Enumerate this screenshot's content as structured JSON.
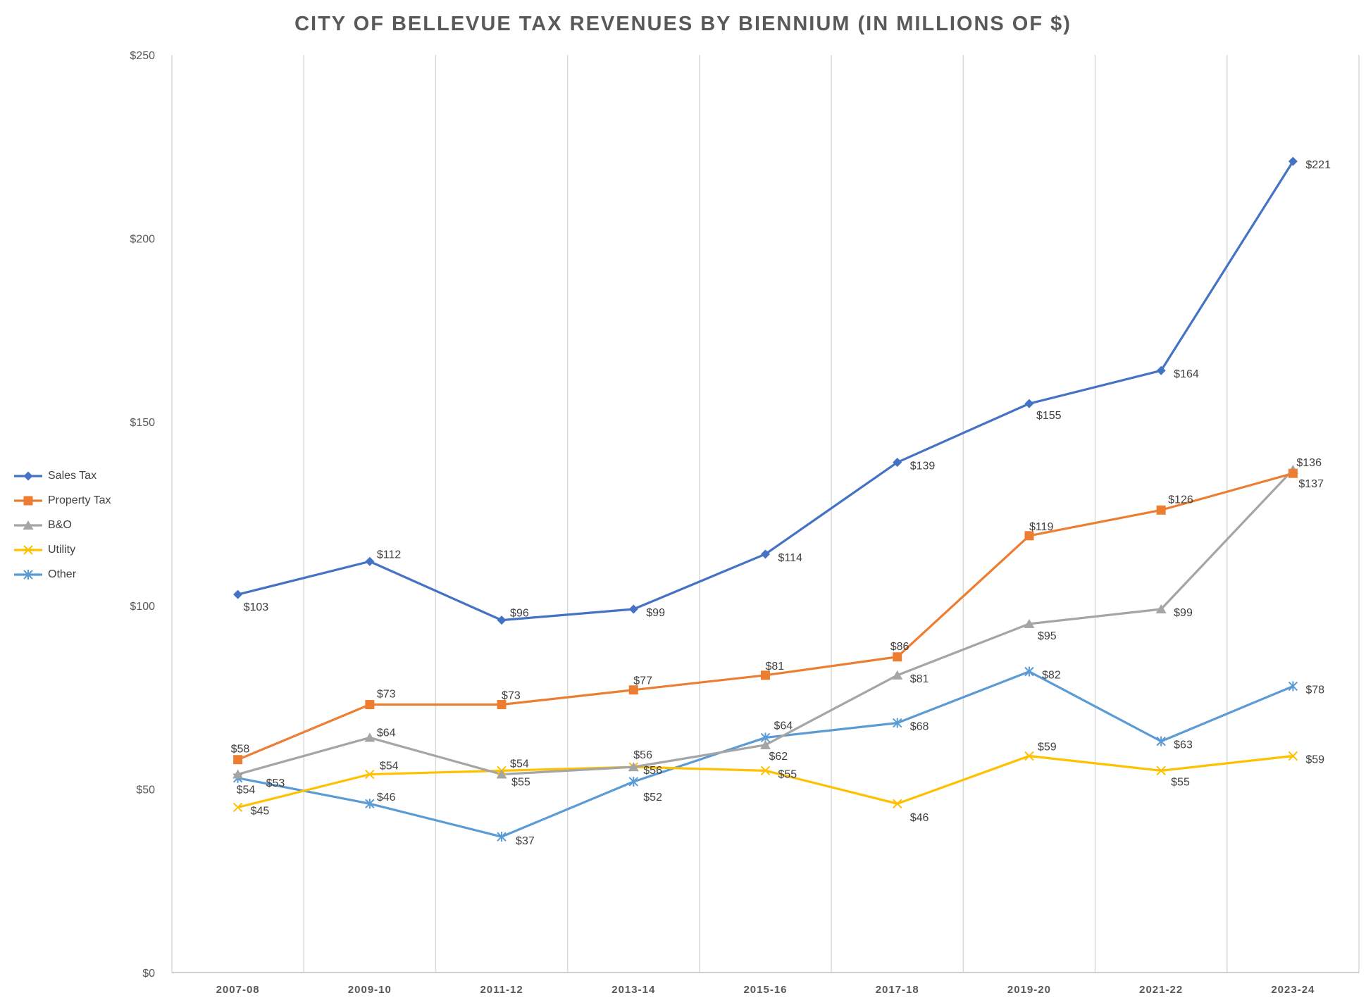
{
  "chart_data": {
    "type": "line",
    "title": "CITY OF BELLEVUE TAX REVENUES BY BIENNIUM (IN MILLIONS OF $)",
    "categories": [
      "2007-08",
      "2009-10",
      "2011-12",
      "2013-14",
      "2015-16",
      "2017-18",
      "2019-20",
      "2021-22",
      "2023-24"
    ],
    "ylim": [
      0,
      250
    ],
    "yticks": [
      0,
      50,
      100,
      150,
      200,
      250
    ],
    "ytick_labels": [
      "$0",
      "$50",
      "$100",
      "$150",
      "$200",
      "$250"
    ],
    "grid": "vertical",
    "legend_position": "left",
    "series": [
      {
        "name": "Sales Tax",
        "color": "#4472c4",
        "marker": "diamond",
        "values": [
          103,
          112,
          96,
          99,
          114,
          139,
          155,
          164,
          221
        ],
        "labels": [
          "$103",
          "$112",
          "$96",
          "$99",
          "$114",
          "$139",
          "$155",
          "$164",
          "$221"
        ]
      },
      {
        "name": "Property Tax",
        "color": "#ed7d31",
        "marker": "square",
        "values": [
          58,
          73,
          73,
          77,
          81,
          86,
          119,
          126,
          136
        ],
        "labels": [
          "$58",
          "$73",
          "$73",
          "$77",
          "$81",
          "$86",
          "$119",
          "$126",
          "$136"
        ]
      },
      {
        "name": "B&O",
        "color": "#a5a5a5",
        "marker": "triangle",
        "values": [
          54,
          64,
          54,
          56,
          62,
          81,
          95,
          99,
          137
        ],
        "labels": [
          "$54",
          "$64",
          "$54",
          "$56",
          "$62",
          "$81",
          "$95",
          "$99",
          "$137"
        ]
      },
      {
        "name": "Utility",
        "color": "#ffc000",
        "marker": "x",
        "values": [
          45,
          54,
          55,
          56,
          55,
          46,
          59,
          55,
          59
        ],
        "labels": [
          "$45",
          "$54",
          "$55",
          "$56",
          "$55",
          "$46",
          "$59",
          "$55",
          "$59"
        ]
      },
      {
        "name": "Other",
        "color": "#5b9bd5",
        "marker": "star",
        "values": [
          53,
          46,
          37,
          52,
          64,
          68,
          82,
          63,
          78
        ],
        "labels": [
          "$53",
          "$46",
          "$37",
          "$52",
          "$64",
          "$68",
          "$82",
          "$63",
          "$78"
        ]
      }
    ]
  }
}
